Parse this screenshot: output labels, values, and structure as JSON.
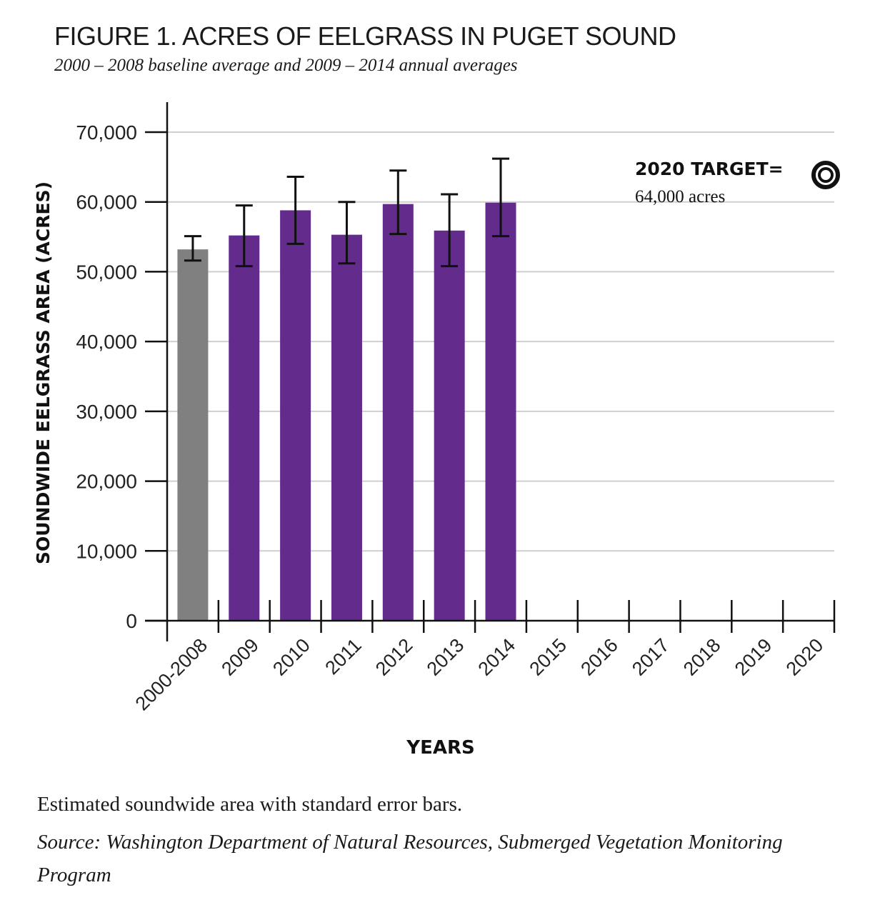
{
  "chart_data": {
    "type": "bar",
    "title": "FIGURE 1. ACRES OF EELGRASS IN PUGET SOUND",
    "subtitle": "2000 – 2008 baseline average and 2009 – 2014 annual averages",
    "xlabel": "YEARS",
    "ylabel": "SOUNDWIDE EELGRASS AREA (ACRES)",
    "ylim": [
      0,
      70000
    ],
    "yticks": [
      0,
      10000,
      20000,
      30000,
      40000,
      50000,
      60000,
      70000
    ],
    "ytick_labels": [
      "0",
      "10,000",
      "20,000",
      "30,000",
      "40,000",
      "50,000",
      "60,000",
      "70,000"
    ],
    "grid": true,
    "categories": [
      "2000-2008",
      "2009",
      "2010",
      "2011",
      "2012",
      "2013",
      "2014",
      "2015",
      "2016",
      "2017",
      "2018",
      "2019",
      "2020"
    ],
    "values": [
      53200,
      55200,
      58800,
      55300,
      59700,
      55900,
      59900,
      null,
      null,
      null,
      null,
      null,
      null
    ],
    "error_low": [
      51600,
      50800,
      54000,
      51200,
      55400,
      50800,
      55100,
      null,
      null,
      null,
      null,
      null,
      null
    ],
    "error_high": [
      55100,
      59500,
      63600,
      60000,
      64500,
      61100,
      66200,
      null,
      null,
      null,
      null,
      null,
      null
    ],
    "bar_colors": [
      "#808080",
      "#622b8c",
      "#622b8c",
      "#622b8c",
      "#622b8c",
      "#622b8c",
      "#622b8c",
      null,
      null,
      null,
      null,
      null,
      null
    ],
    "target": {
      "label": "2020 TARGET=",
      "value_label": "64,000 acres",
      "year": "2020",
      "value": 64000
    },
    "caption": "Estimated soundwide area with standard error bars.",
    "source": "Source: Washington Department of Natural Resources, Submerged Vegetation Monitoring Program"
  }
}
